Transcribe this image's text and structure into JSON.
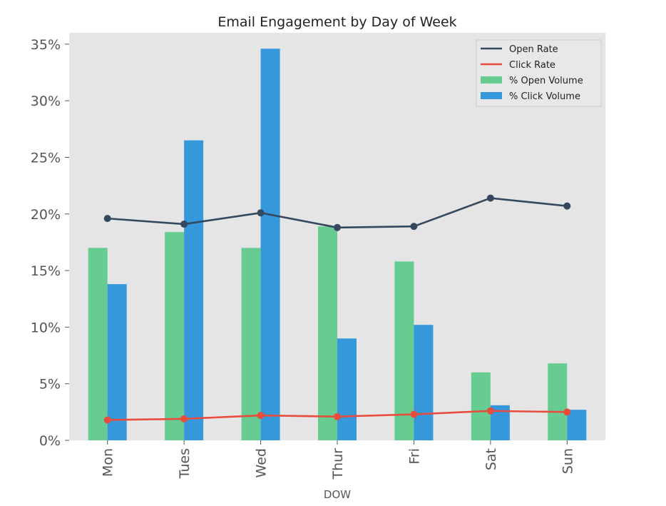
{
  "chart_data": {
    "type": "bar",
    "title": "Email Engagement by Day of Week",
    "xlabel": "DOW",
    "ylabel": "",
    "categories": [
      "Mon",
      "Tues",
      "Wed",
      "Thur",
      "Fri",
      "Sat",
      "Sun"
    ],
    "ylim": [
      0,
      0.36
    ],
    "yticks": [
      0,
      0.05,
      0.1,
      0.15,
      0.2,
      0.25,
      0.3,
      0.35
    ],
    "ytick_labels": [
      "0%",
      "5%",
      "10%",
      "15%",
      "20%",
      "25%",
      "30%",
      "35%"
    ],
    "grid": false,
    "legend_position": "top-right",
    "series": [
      {
        "name": "Open Rate",
        "kind": "line",
        "color": "#34495e",
        "values": [
          0.196,
          0.191,
          0.201,
          0.188,
          0.189,
          0.214,
          0.207
        ]
      },
      {
        "name": "Click Rate",
        "kind": "line",
        "color": "#e74c3c",
        "values": [
          0.018,
          0.019,
          0.022,
          0.021,
          0.023,
          0.026,
          0.025
        ]
      },
      {
        "name": "% Open Volume",
        "kind": "bar",
        "color": "#66cc91",
        "values": [
          0.17,
          0.184,
          0.17,
          0.189,
          0.158,
          0.06,
          0.068
        ]
      },
      {
        "name": "% Click Volume",
        "kind": "bar",
        "color": "#3498db",
        "values": [
          0.138,
          0.265,
          0.346,
          0.09,
          0.102,
          0.031,
          0.027
        ]
      }
    ],
    "plot_background": "#e5e5e5"
  }
}
